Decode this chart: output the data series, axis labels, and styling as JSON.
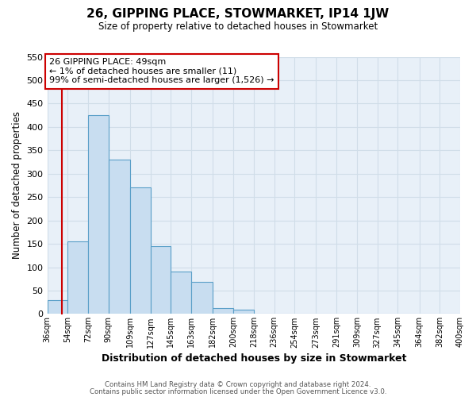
{
  "title": "26, GIPPING PLACE, STOWMARKET, IP14 1JW",
  "subtitle": "Size of property relative to detached houses in Stowmarket",
  "xlabel": "Distribution of detached houses by size in Stowmarket",
  "ylabel": "Number of detached properties",
  "bar_edges": [
    36,
    54,
    72,
    90,
    109,
    127,
    145,
    163,
    182,
    200,
    218,
    236,
    254,
    273,
    291,
    309,
    327,
    345,
    364,
    382,
    400
  ],
  "bar_heights": [
    30,
    155,
    425,
    330,
    270,
    145,
    90,
    68,
    13,
    10,
    0,
    0,
    0,
    0,
    0,
    0,
    0,
    0,
    0,
    1
  ],
  "bar_color": "#c8ddf0",
  "bar_edge_color": "#5a9fc8",
  "property_line_x": 49,
  "property_line_color": "#cc0000",
  "annotation_line1": "26 GIPPING PLACE: 49sqm",
  "annotation_line2": "← 1% of detached houses are smaller (11)",
  "annotation_line3": "99% of semi-detached houses are larger (1,526) →",
  "ylim": [
    0,
    550
  ],
  "yticks": [
    0,
    50,
    100,
    150,
    200,
    250,
    300,
    350,
    400,
    450,
    500,
    550
  ],
  "grid_color": "#d0dde8",
  "background_color": "#e8f0f8",
  "tick_labels": [
    "36sqm",
    "54sqm",
    "72sqm",
    "90sqm",
    "109sqm",
    "127sqm",
    "145sqm",
    "163sqm",
    "182sqm",
    "200sqm",
    "218sqm",
    "236sqm",
    "254sqm",
    "273sqm",
    "291sqm",
    "309sqm",
    "327sqm",
    "345sqm",
    "364sqm",
    "382sqm",
    "400sqm"
  ],
  "footer_line1": "Contains HM Land Registry data © Crown copyright and database right 2024.",
  "footer_line2": "Contains public sector information licensed under the Open Government Licence v3.0."
}
